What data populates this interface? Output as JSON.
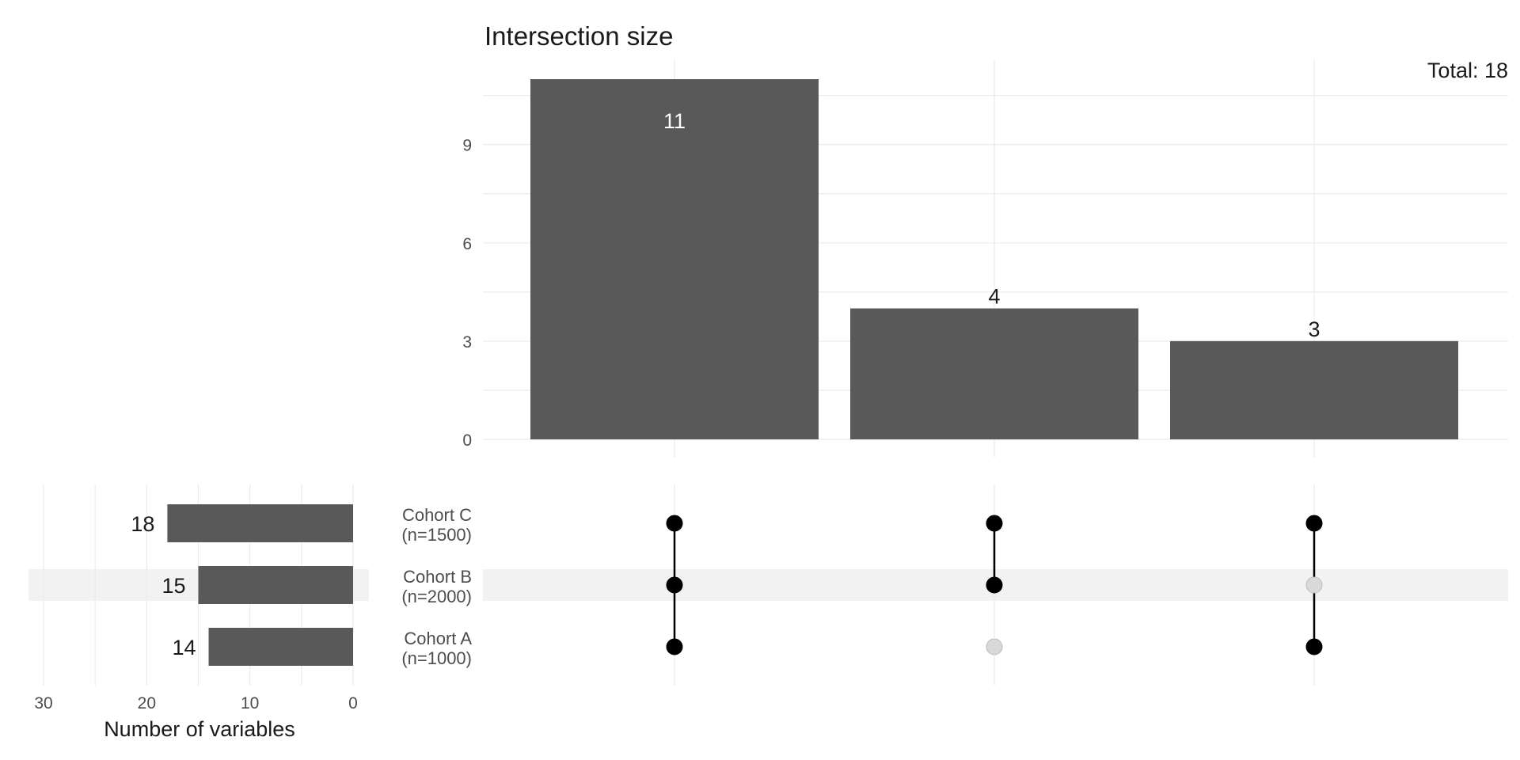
{
  "chart_data": {
    "type": "bar",
    "subtype": "upset",
    "title": "Intersection size",
    "annotation": "Total: 18",
    "intersections": {
      "values": [
        11,
        4,
        3
      ],
      "ylim": [
        0,
        11
      ],
      "yticks": [
        0,
        3,
        6,
        9
      ],
      "bar_color": "#595959",
      "memberships": [
        [
          "Cohort C (n=1500)",
          "Cohort B (n=2000)",
          "Cohort A (n=1000)"
        ],
        [
          "Cohort C (n=1500)",
          "Cohort B (n=2000)"
        ],
        [
          "Cohort C (n=1500)",
          "Cohort A (n=1000)"
        ]
      ]
    },
    "sets": {
      "names": [
        "Cohort C\n(n=1500)",
        "Cohort B\n(n=2000)",
        "Cohort A\n(n=1000)"
      ],
      "values": [
        18,
        15,
        14
      ],
      "xlabel": "Number of variables",
      "xticks": [
        30,
        20,
        10,
        0
      ],
      "xlim": [
        0,
        30
      ],
      "direction": "reversed"
    },
    "grid": true,
    "colors": {
      "bar": "#595959",
      "dot_active": "#000000",
      "dot_inactive": "#d9d9d9",
      "grid": "#ebebeb",
      "stripe": "#f2f2f2"
    }
  }
}
